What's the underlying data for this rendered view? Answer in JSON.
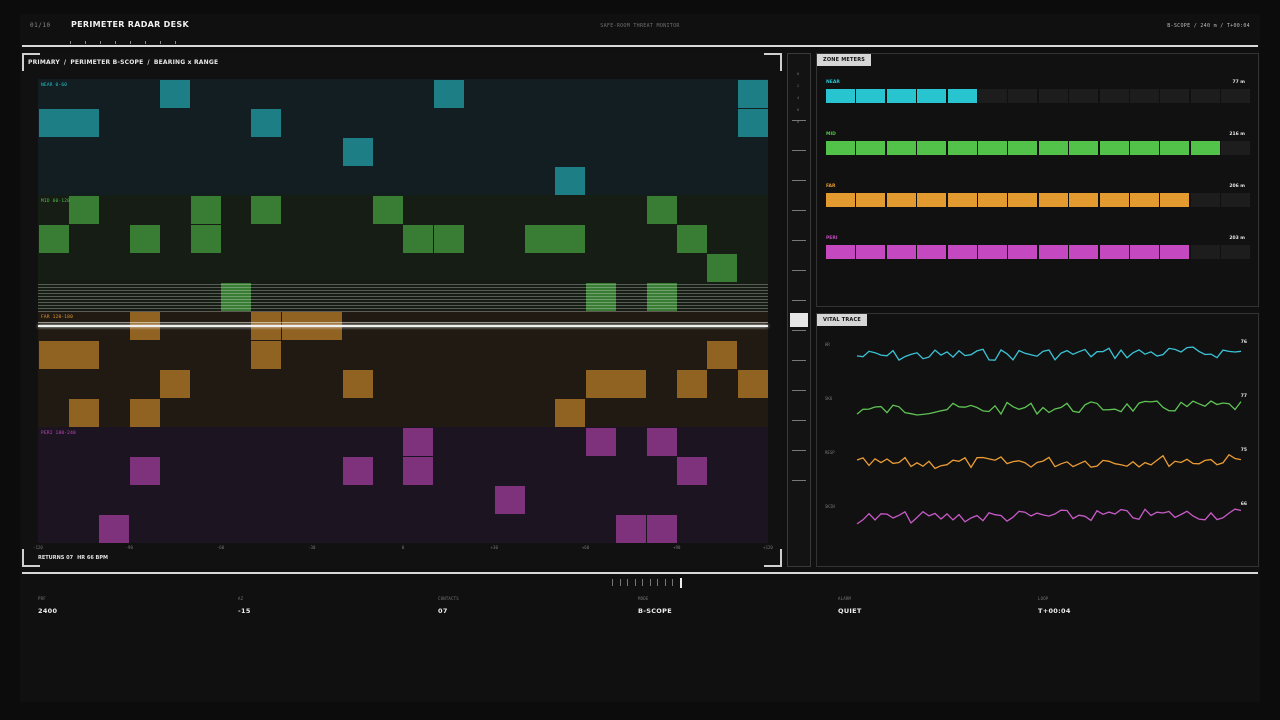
{
  "header": {
    "page_index": "01/10",
    "title": "PERIMETER RADAR DESK",
    "subtitle": "SAFE-ROOM THREAT MONITOR",
    "status": "B-SCOPE / 240 m / T+00:04"
  },
  "scope": {
    "breadcrumb": [
      "PRIMARY",
      "PERIMETER B-SCOPE",
      "BEARING x RANGE"
    ],
    "bands": [
      {
        "label": "NEAR 0-60",
        "color": "#28c4cf"
      },
      {
        "label": "MID 60-120",
        "color": "#52c24b"
      },
      {
        "label": "FAR 120-180",
        "color": "#e39a2e"
      },
      {
        "label": "PERI 180-240",
        "color": "#c449c0"
      }
    ],
    "x_ticks": [
      "-120",
      "-90",
      "-60",
      "-30",
      "0",
      "+30",
      "+60",
      "+90",
      "+120"
    ],
    "footer_returns": "RETURNS 07",
    "footer_hr": "HR 66 BPM"
  },
  "slider": {
    "labels": [
      "0",
      "2",
      "4",
      "6",
      "8"
    ],
    "level": 0.52
  },
  "zones": {
    "tag": "ZONE METERS",
    "meters": [
      {
        "name": "NEAR",
        "value": "77 m",
        "fill": 0.36,
        "color": "#28c4cf"
      },
      {
        "name": "MID",
        "value": "216 m",
        "fill": 0.93,
        "color": "#52c24b"
      },
      {
        "name": "FAR",
        "value": "206 m",
        "fill": 0.86,
        "color": "#e39a2e"
      },
      {
        "name": "PERI",
        "value": "203 m",
        "fill": 0.86,
        "color": "#c449c0"
      }
    ]
  },
  "vital": {
    "tag": "VITAL TRACE",
    "traces": [
      {
        "label": "HR",
        "value": "76",
        "color": "#3bc3d6"
      },
      {
        "label": "SKU",
        "value": "77",
        "color": "#5ec453"
      },
      {
        "label": "RESP",
        "value": "75",
        "color": "#ea9c35"
      },
      {
        "label": "SKIN",
        "value": "66",
        "color": "#c85ac7"
      }
    ]
  },
  "bottom": {
    "stats": [
      {
        "key": "PRF",
        "value": "2400"
      },
      {
        "key": "AZ",
        "value": "-15"
      },
      {
        "key": "CONTACTS",
        "value": "07"
      },
      {
        "key": "MODE",
        "value": "B-SCOPE"
      },
      {
        "key": "ALARM",
        "value": "QUIET"
      },
      {
        "key": "LOOP",
        "value": "T+00:04"
      }
    ]
  }
}
